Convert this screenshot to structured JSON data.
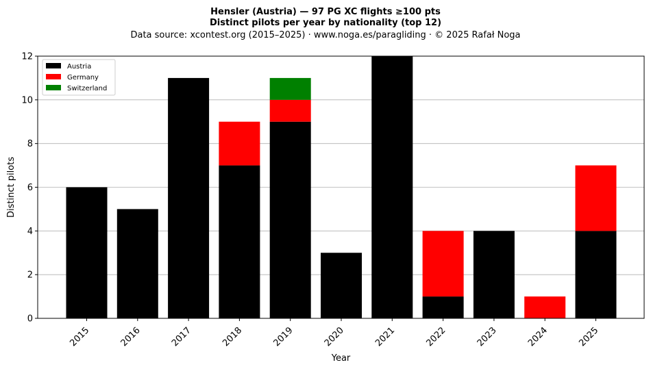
{
  "chart_data": {
    "type": "bar",
    "stacked": true,
    "title_lines": [
      "Hensler (Austria)  —  97 PG XC flights ≥100 pts",
      "Distinct pilots per year by nationality (top 12)"
    ],
    "subtitle": "Data source: xcontest.org (2015–2025)  ·  www.noga.es/paragliding  ·  © 2025 Rafał Noga",
    "xlabel": "Year",
    "ylabel": "Distinct pilots",
    "ylim": [
      0,
      12
    ],
    "yticks": [
      "0",
      "2",
      "4",
      "6",
      "8",
      "10",
      "12"
    ],
    "grid": "horizontal",
    "legend_position": "top-left",
    "categories": [
      "2015",
      "2016",
      "2017",
      "2018",
      "2019",
      "2020",
      "2021",
      "2022",
      "2023",
      "2024",
      "2025"
    ],
    "series": [
      {
        "name": "Austria",
        "color": "#000000",
        "values": [
          6,
          5,
          11,
          7,
          9,
          3,
          12,
          1,
          4,
          0,
          4
        ]
      },
      {
        "name": "Germany",
        "color": "#ff0000",
        "values": [
          0,
          0,
          0,
          2,
          1,
          0,
          0,
          3,
          0,
          1,
          3
        ]
      },
      {
        "name": "Switzerland",
        "color": "#008000",
        "values": [
          0,
          0,
          0,
          0,
          1,
          0,
          0,
          0,
          0,
          0,
          0
        ]
      }
    ]
  }
}
